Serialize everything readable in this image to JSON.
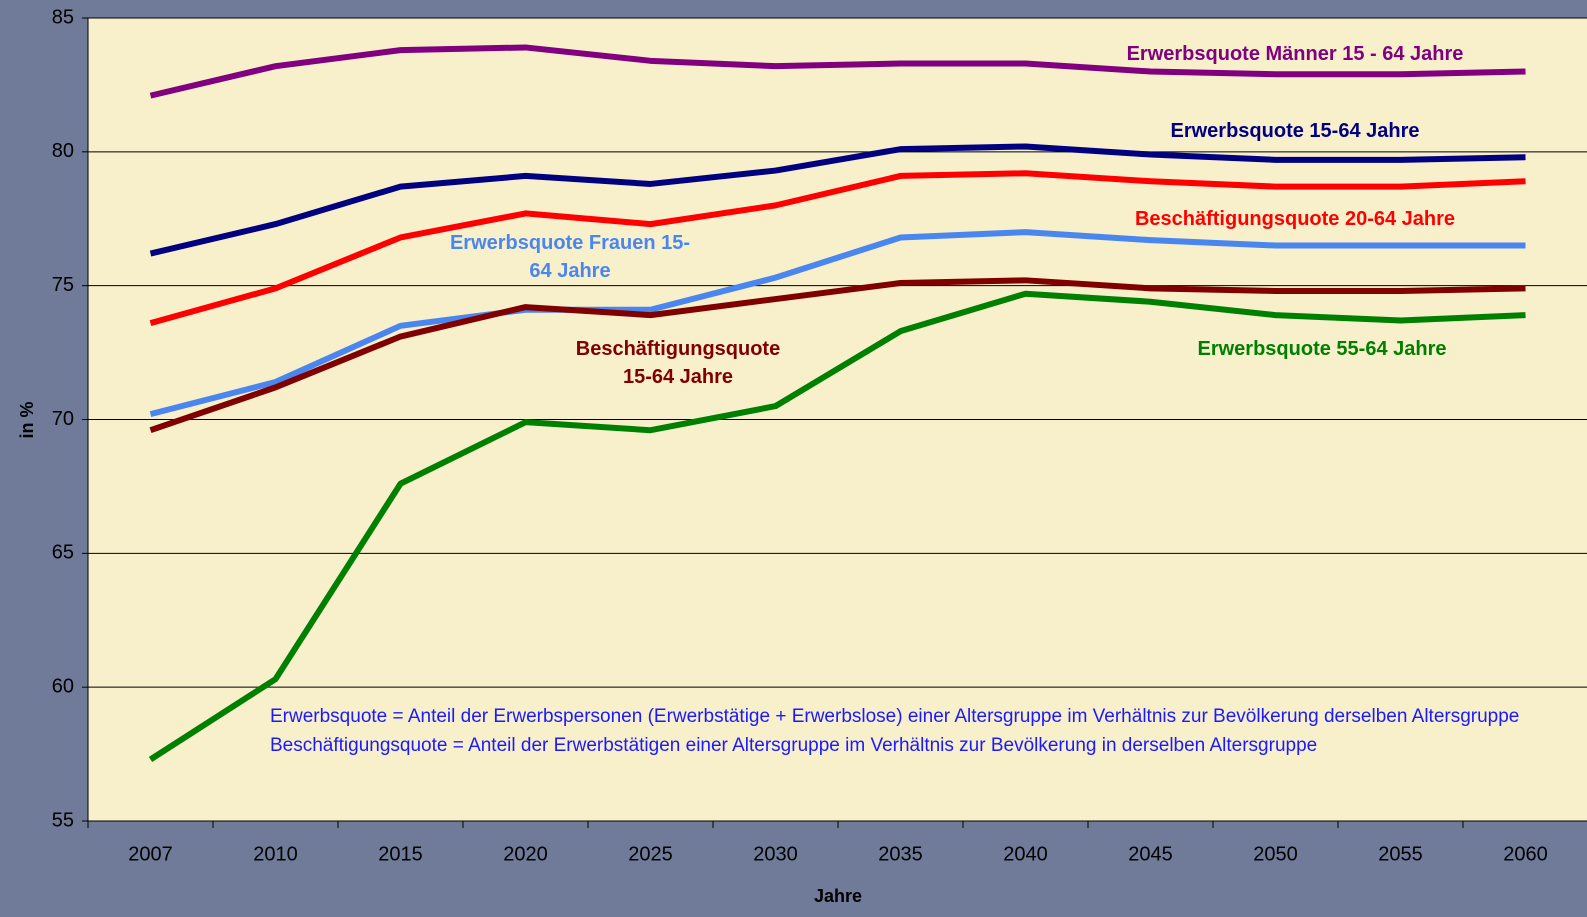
{
  "chart_data": {
    "type": "line",
    "xlabel": "Jahre",
    "ylabel": "in %",
    "categories": [
      "2007",
      "2010",
      "2015",
      "2020",
      "2025",
      "2030",
      "2035",
      "2040",
      "2045",
      "2050",
      "2055",
      "2060"
    ],
    "series": [
      {
        "name": "Erwerbsquote Männer 15 - 64 Jahre",
        "color": "#800080",
        "values": [
          82.1,
          83.2,
          83.8,
          83.9,
          83.4,
          83.2,
          83.3,
          83.3,
          83.0,
          82.9,
          82.9,
          83.0
        ]
      },
      {
        "name": "Erwerbsquote 15-64 Jahre",
        "color": "#000080",
        "values": [
          76.2,
          77.3,
          78.7,
          79.1,
          78.8,
          79.3,
          80.1,
          80.2,
          79.9,
          79.7,
          79.7,
          79.8
        ]
      },
      {
        "name": "Beschäftigungsquote 20-64 Jahre",
        "color": "#ff0000",
        "values": [
          73.6,
          74.9,
          76.8,
          77.7,
          77.3,
          78.0,
          79.1,
          79.2,
          78.9,
          78.7,
          78.7,
          78.9
        ]
      },
      {
        "name": "Erwerbsquote Frauen 15-64 Jahre",
        "color": "#4a86f0",
        "values": [
          70.2,
          71.4,
          73.5,
          74.1,
          74.1,
          75.3,
          76.8,
          77.0,
          76.7,
          76.5,
          76.5,
          76.5
        ]
      },
      {
        "name": "Beschäftigungsquote 15-64 Jahre",
        "color": "#800000",
        "values": [
          69.6,
          71.2,
          73.1,
          74.2,
          73.9,
          74.5,
          75.1,
          75.2,
          74.9,
          74.8,
          74.8,
          74.9
        ]
      },
      {
        "name": "Erwerbsquote 55-64 Jahre",
        "color": "#008000",
        "values": [
          57.3,
          60.3,
          67.6,
          69.9,
          69.6,
          70.5,
          73.3,
          74.7,
          74.4,
          73.9,
          73.7,
          73.9
        ]
      }
    ],
    "ylim": [
      55,
      85
    ],
    "yticks": [
      55,
      60,
      65,
      70,
      75,
      80,
      85
    ],
    "grid": true,
    "notes": [
      "Erwerbsquote = Anteil der Erwerbspersonen (Erwerbstätige + Erwerbslose) einer Altersgruppe im Verhältnis zur Bevölkerung derselben Altersgruppe",
      "Beschäftigungsquote =  Anteil der Erwerbstätigen einer Altersgruppe im Verhältnis zur Bevölkerung in derselben Altersgruppe"
    ]
  }
}
